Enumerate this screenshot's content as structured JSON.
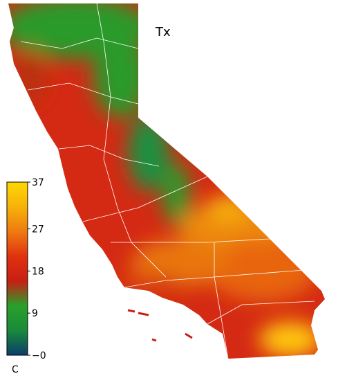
{
  "title": "Tx",
  "colorbar": {
    "label": "C",
    "range": [
      0,
      37
    ],
    "ticks": [
      37,
      27,
      18,
      9,
      {
        "value": 0,
        "label": "−0"
      }
    ],
    "colors": [
      "#0a3d6b",
      "#1a8a3a",
      "#2aa02a",
      "#c81e14",
      "#e0320f",
      "#ee7a10",
      "#f7b20a",
      "#ffd700"
    ]
  }
}
